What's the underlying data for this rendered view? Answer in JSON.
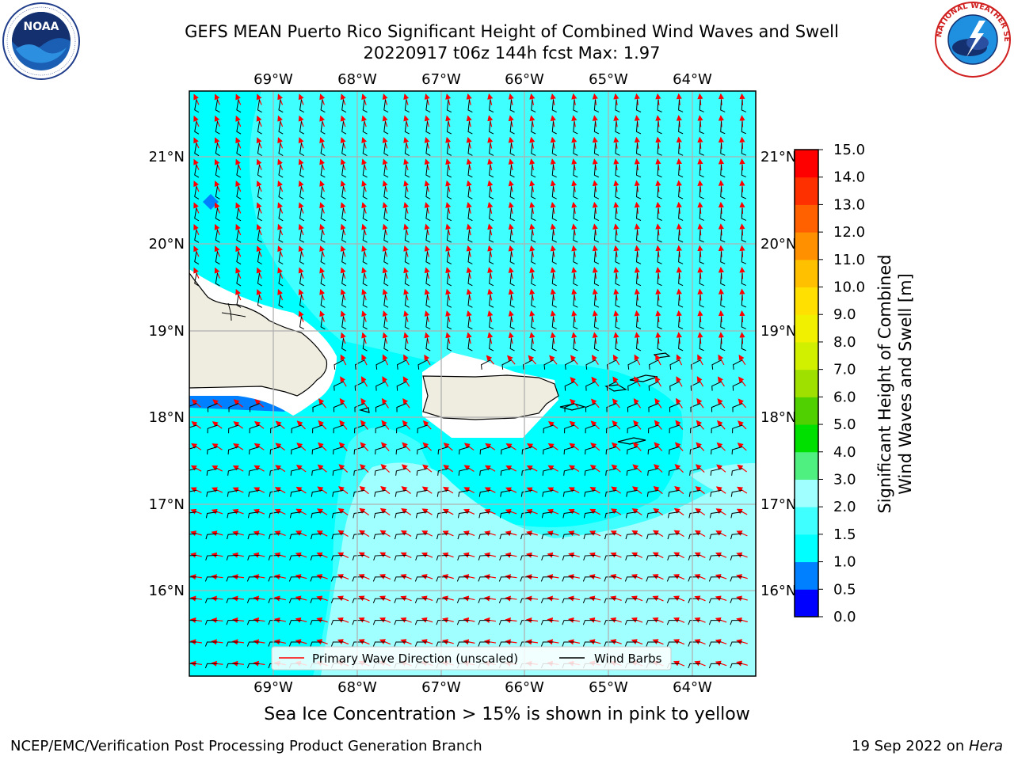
{
  "title": {
    "line1": "GEFS MEAN Puerto Rico Significant Height of Combined Wind Waves and Swell",
    "line2": "20220917 t06z 144h fcst   Max: 1.97"
  },
  "logos": {
    "left": {
      "text": "NOAA",
      "ring_text": "NATIONAL OCEANIC AND ATMOSPHERIC ADMINISTRATION · U.S. DEPARTMENT OF COMMERCE"
    },
    "right": {
      "text": "NATIONAL WEATHER SERVICE"
    }
  },
  "axes": {
    "lon_labels": [
      "69°W",
      "68°W",
      "67°W",
      "66°W",
      "65°W",
      "64°W"
    ],
    "lat_labels": [
      "21°N",
      "20°N",
      "19°N",
      "18°N",
      "17°N",
      "16°N"
    ]
  },
  "legend": {
    "wave_direction": "Primary Wave Direction (unscaled)",
    "wind_barbs": "Wind Barbs"
  },
  "colorbar": {
    "label_line1": "Significant Height of Combined",
    "label_line2": "Wind Waves and Swell [m]",
    "ticks": [
      "0.0",
      "0.5",
      "1.0",
      "1.5",
      "2.0",
      "3.0",
      "4.0",
      "5.0",
      "6.0",
      "7.0",
      "8.0",
      "9.0",
      "10.0",
      "11.0",
      "12.0",
      "13.0",
      "14.0",
      "15.0"
    ],
    "colors": [
      "#0000ff",
      "#0080ff",
      "#00ffff",
      "#40ffff",
      "#a0ffff",
      "#50f080",
      "#00e000",
      "#50d000",
      "#a0e000",
      "#d0f000",
      "#f0f000",
      "#ffe000",
      "#ffc000",
      "#ff9000",
      "#ff6000",
      "#ff3000",
      "#ff0000"
    ]
  },
  "map_colors": {
    "sea_0_5_1_0": "#0080ff",
    "sea_1_0_1_5": "#00ffff",
    "sea_1_5_2_0": "#40ffff",
    "sea_2_0_3_0": "#a0ffff",
    "land": "#efede0",
    "grid": "#b0b0b0",
    "wave_arrow": "#ff0000",
    "wind_barb": "#000000"
  },
  "footer": {
    "ice_note": "Sea Ice Concentration > 15% is shown in pink to yellow",
    "credit": "NCEP/EMC/Verification Post Processing Product Generation Branch",
    "date": "19 Sep 2022 on ",
    "host": "Hera"
  }
}
